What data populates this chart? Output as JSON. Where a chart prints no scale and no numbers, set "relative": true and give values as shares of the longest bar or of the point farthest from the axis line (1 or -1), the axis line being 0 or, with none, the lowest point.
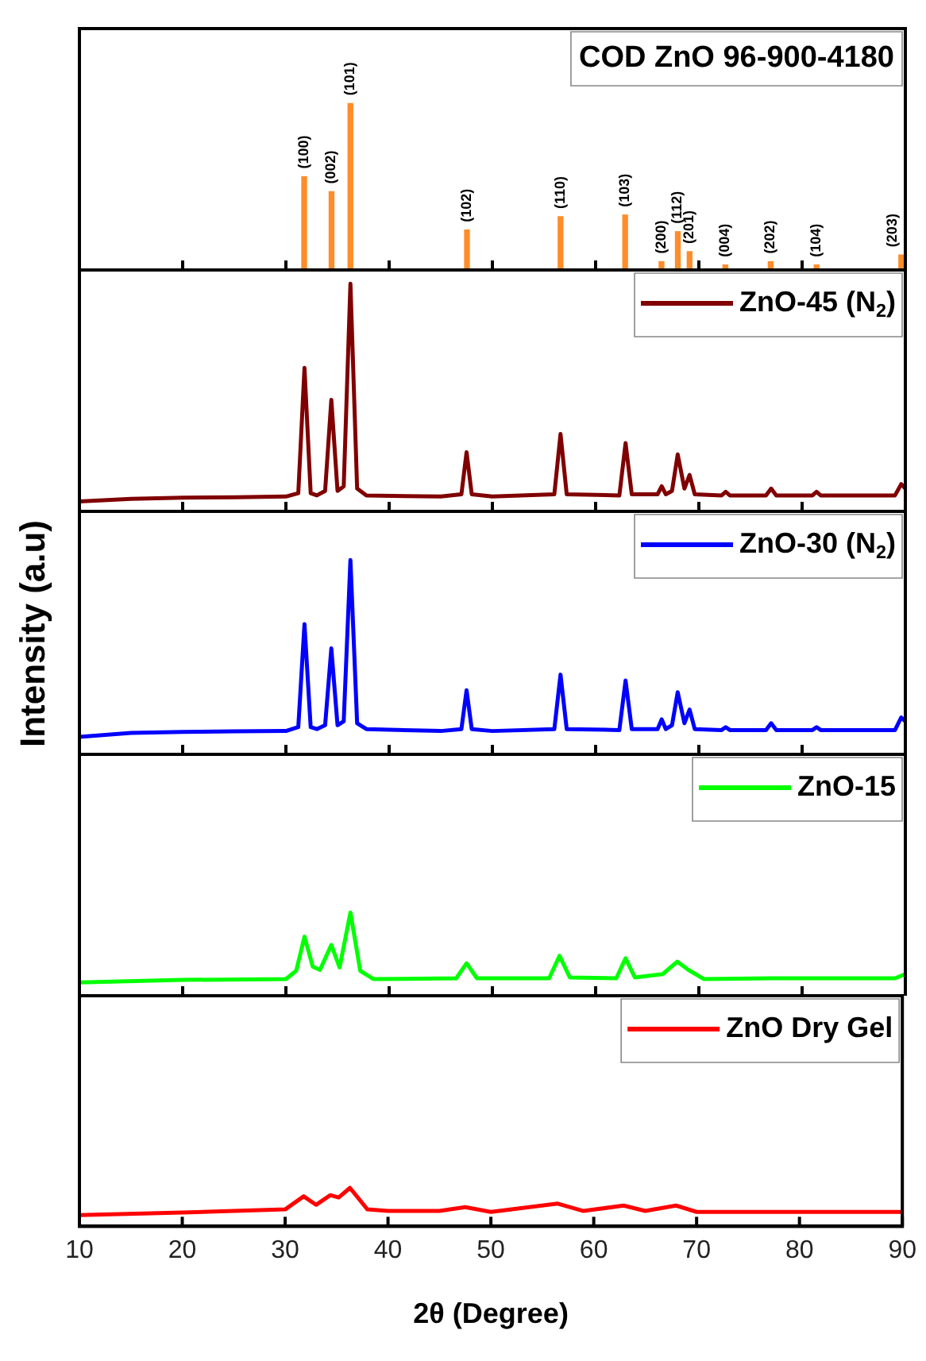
{
  "chart_data": [
    {
      "type": "bar",
      "relative": true,
      "title": "COD ZnO 96-900-4180",
      "xlim": [
        10,
        90
      ],
      "xticks": [
        10,
        20,
        30,
        40,
        50,
        60,
        70,
        80,
        90
      ],
      "tick_labels": false,
      "color": "#ff8c2a",
      "x": [
        31.77,
        34.42,
        36.25,
        47.54,
        56.6,
        62.86,
        66.38,
        67.96,
        69.1,
        72.56,
        76.95,
        81.4,
        89.6
      ],
      "values": [
        0.56,
        0.47,
        1.0,
        0.24,
        0.32,
        0.33,
        0.05,
        0.23,
        0.11,
        0.03,
        0.05,
        0.03,
        0.09
      ],
      "annotations": [
        {
          "text": "(100)",
          "x": 31.77,
          "y": 0.56
        },
        {
          "text": "(002)",
          "x": 34.42,
          "y": 0.47
        },
        {
          "text": "(101)",
          "x": 36.25,
          "y": 1.0
        },
        {
          "text": "(102)",
          "x": 47.54,
          "y": 0.24
        },
        {
          "text": "(110)",
          "x": 56.6,
          "y": 0.32
        },
        {
          "text": "(103)",
          "x": 62.86,
          "y": 0.33
        },
        {
          "text": "(200)",
          "x": 66.38,
          "y": 0.05
        },
        {
          "text": "(112)",
          "x": 67.96,
          "y": 0.23
        },
        {
          "text": "(201)",
          "x": 69.1,
          "y": 0.11
        },
        {
          "text": "(004)",
          "x": 72.56,
          "y": 0.03
        },
        {
          "text": "(202)",
          "x": 76.95,
          "y": 0.05
        },
        {
          "text": "(104)",
          "x": 81.4,
          "y": 0.03
        },
        {
          "text": "(203)",
          "x": 89.6,
          "y": 0.09
        }
      ]
    },
    {
      "type": "line",
      "relative": true,
      "legend": "top right",
      "xlim": [
        10,
        90
      ],
      "xticks": [
        10,
        20,
        30,
        40,
        50,
        60,
        70,
        80,
        90
      ],
      "tick_labels": false,
      "x": [
        10,
        15,
        20,
        25,
        30,
        31.2,
        31.8,
        32.4,
        33.0,
        33.8,
        34.4,
        35.0,
        35.6,
        36.25,
        36.9,
        37.8,
        45,
        47.0,
        47.5,
        48.0,
        50,
        56.0,
        56.6,
        57.2,
        62.3,
        62.9,
        63.5,
        66.0,
        66.4,
        66.8,
        67.4,
        67.95,
        68.6,
        69.1,
        69.6,
        72.2,
        72.6,
        73.0,
        76.5,
        77.0,
        77.5,
        81.0,
        81.4,
        81.8,
        89.0,
        89.6,
        90
      ],
      "series": [
        {
          "name": "ZnO-45 (N$_{2}$)",
          "color": "#800000",
          "values": [
            0.044,
            0.055,
            0.06,
            0.062,
            0.065,
            0.08,
            0.63,
            0.08,
            0.07,
            0.09,
            0.49,
            0.09,
            0.11,
            1.0,
            0.1,
            0.07,
            0.065,
            0.075,
            0.26,
            0.075,
            0.065,
            0.075,
            0.34,
            0.075,
            0.07,
            0.3,
            0.075,
            0.075,
            0.11,
            0.075,
            0.09,
            0.25,
            0.1,
            0.16,
            0.075,
            0.07,
            0.086,
            0.07,
            0.07,
            0.1,
            0.07,
            0.07,
            0.086,
            0.07,
            0.07,
            0.12,
            0.1
          ]
        }
      ]
    },
    {
      "type": "line",
      "relative": true,
      "legend": "top right",
      "ylabel": "Intensity (a.u)",
      "xlim": [
        10,
        90
      ],
      "xticks": [
        10,
        20,
        30,
        40,
        50,
        60,
        70,
        80,
        90
      ],
      "tick_labels": false,
      "x": [
        10,
        15,
        20,
        25,
        30,
        31.2,
        31.8,
        32.4,
        33.0,
        33.8,
        34.4,
        35.0,
        35.6,
        36.25,
        36.9,
        37.8,
        45,
        47.0,
        47.5,
        48.0,
        50,
        56.0,
        56.6,
        57.2,
        62.3,
        62.9,
        63.5,
        66.0,
        66.4,
        66.8,
        67.4,
        67.95,
        68.6,
        69.1,
        69.6,
        72.2,
        72.6,
        73.0,
        76.5,
        77.0,
        77.5,
        81.0,
        81.4,
        81.8,
        89.0,
        89.6,
        90
      ],
      "series": [
        {
          "name": "ZnO-30 (N$_{2}$)",
          "color": "#0000ff",
          "values": [
            0.09,
            0.11,
            0.115,
            0.118,
            0.12,
            0.14,
            0.67,
            0.14,
            0.13,
            0.15,
            0.545,
            0.15,
            0.17,
            1.0,
            0.16,
            0.13,
            0.12,
            0.13,
            0.33,
            0.13,
            0.12,
            0.13,
            0.41,
            0.13,
            0.125,
            0.38,
            0.13,
            0.13,
            0.18,
            0.13,
            0.15,
            0.32,
            0.16,
            0.23,
            0.13,
            0.125,
            0.14,
            0.125,
            0.125,
            0.16,
            0.125,
            0.125,
            0.14,
            0.125,
            0.125,
            0.19,
            0.17
          ]
        }
      ]
    },
    {
      "type": "line",
      "relative": true,
      "legend": "top right",
      "xlim": [
        10,
        90
      ],
      "xticks": [
        10,
        20,
        30,
        40,
        50,
        60,
        70,
        80,
        90
      ],
      "tick_labels": false,
      "x": [
        10,
        20,
        30,
        31.0,
        31.8,
        32.6,
        33.3,
        34.4,
        35.2,
        36.25,
        37.2,
        38.5,
        46.5,
        47.5,
        48.5,
        55.5,
        56.5,
        57.5,
        62,
        62.9,
        63.8,
        66.5,
        67.9,
        69.0,
        70.5,
        77,
        89,
        90
      ],
      "series": [
        {
          "name": "ZnO-15",
          "color": "#00ff00",
          "values": [
            0.16,
            0.19,
            0.2,
            0.3,
            0.71,
            0.35,
            0.31,
            0.61,
            0.34,
            1.0,
            0.3,
            0.2,
            0.21,
            0.39,
            0.21,
            0.21,
            0.48,
            0.22,
            0.21,
            0.45,
            0.22,
            0.26,
            0.41,
            0.31,
            0.2,
            0.21,
            0.21,
            0.26
          ]
        }
      ]
    },
    {
      "type": "line",
      "relative": true,
      "legend": "top right",
      "xlabel": "2θ (Degree)",
      "xlim": [
        10,
        90
      ],
      "xticks": [
        10,
        20,
        30,
        40,
        50,
        60,
        70,
        80,
        90
      ],
      "tick_labels": "x",
      "x": [
        10,
        20,
        30,
        31.8,
        33,
        34.4,
        35.2,
        36.3,
        38,
        40,
        45,
        47.5,
        50,
        56.5,
        59,
        62.9,
        65,
        68,
        70,
        90
      ],
      "series": [
        {
          "name": "ZnO Dry Gel",
          "color": "#ff0000",
          "values": [
            0.29,
            0.36,
            0.44,
            0.78,
            0.56,
            0.81,
            0.75,
            1.0,
            0.44,
            0.4,
            0.4,
            0.5,
            0.375,
            0.59,
            0.4,
            0.54,
            0.4,
            0.54,
            0.375,
            0.375
          ]
        }
      ]
    }
  ]
}
